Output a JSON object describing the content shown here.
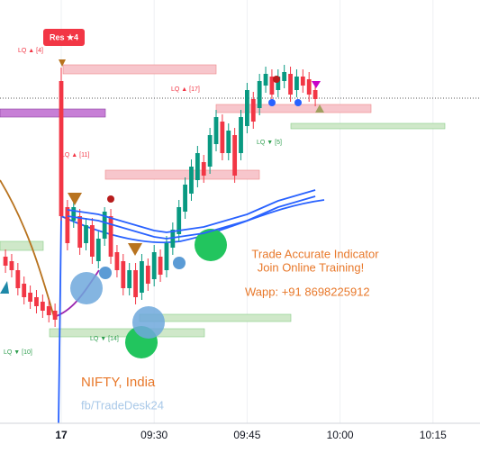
{
  "chart_data": {
    "type": "candlestick",
    "categories": [
      null,
      null,
      null,
      null,
      null,
      null,
      null,
      null,
      null,
      "17",
      null,
      null,
      null,
      null,
      null,
      null,
      null,
      null,
      null,
      null,
      null,
      null,
      null,
      null,
      "09:30",
      null,
      null,
      null,
      null,
      null,
      null,
      null,
      null,
      null,
      null,
      null,
      null,
      null,
      null,
      "09:45",
      null,
      null,
      null,
      null,
      null,
      null,
      null,
      null,
      null,
      null,
      null,
      null,
      null,
      null,
      "10:00",
      null,
      null,
      null,
      null,
      null,
      null,
      null,
      null,
      null,
      null,
      null,
      null,
      null,
      null,
      "10:15"
    ],
    "open": [
      185,
      180,
      170,
      155,
      145,
      140,
      135,
      130,
      125,
      380,
      240,
      225,
      230,
      200,
      220,
      180,
      205,
      230,
      190,
      180,
      150,
      170,
      145,
      175,
      160,
      185,
      170,
      195,
      210,
      235,
      255,
      270,
      290,
      285,
      310,
      335,
      300,
      320,
      300,
      330,
      360,
      350,
      375,
      385,
      370,
      380,
      388,
      370,
      385,
      382,
      370,
      null,
      null,
      null,
      null,
      null,
      null,
      null,
      null,
      null,
      null,
      null,
      null,
      null,
      null,
      null,
      null,
      null,
      null,
      null
    ],
    "high": [
      193,
      188,
      178,
      163,
      153,
      148,
      143,
      138,
      133,
      395,
      248,
      248,
      238,
      228,
      228,
      213,
      240,
      238,
      198,
      188,
      178,
      178,
      188,
      183,
      198,
      193,
      208,
      223,
      248,
      273,
      293,
      308,
      298,
      328,
      348,
      343,
      333,
      328,
      348,
      378,
      368,
      388,
      396,
      393,
      393,
      398,
      396,
      393,
      393,
      390,
      378,
      null,
      null,
      null,
      null,
      null,
      null,
      null,
      null,
      null,
      null,
      null,
      null,
      null,
      null,
      null,
      null,
      null,
      null,
      null
    ],
    "low": [
      167,
      162,
      142,
      132,
      127,
      122,
      117,
      112,
      107,
      225,
      192,
      217,
      187,
      192,
      177,
      172,
      197,
      177,
      162,
      142,
      142,
      132,
      137,
      147,
      152,
      157,
      162,
      187,
      202,
      227,
      247,
      262,
      267,
      277,
      302,
      292,
      292,
      267,
      292,
      322,
      327,
      342,
      367,
      357,
      362,
      372,
      357,
      362,
      367,
      357,
      352,
      null,
      null,
      null,
      null,
      null,
      null,
      null,
      null,
      null,
      null,
      null,
      null,
      null,
      null,
      null,
      null,
      null,
      null,
      null
    ],
    "close": [
      175,
      170,
      150,
      140,
      135,
      130,
      125,
      120,
      115,
      230,
      200,
      240,
      195,
      220,
      185,
      205,
      235,
      185,
      170,
      150,
      170,
      140,
      180,
      155,
      190,
      165,
      200,
      215,
      240,
      265,
      285,
      300,
      275,
      320,
      340,
      300,
      325,
      275,
      340,
      370,
      335,
      380,
      388,
      365,
      385,
      390,
      365,
      385,
      375,
      365,
      360,
      null,
      null,
      null,
      null,
      null,
      null,
      null,
      null,
      null,
      null,
      null,
      null,
      null,
      null,
      null,
      null,
      null,
      null,
      null
    ],
    "up_color": "#089981",
    "down_color": "#f23645",
    "lines": [
      {
        "color": "#2962ff",
        "values": [
          null,
          null,
          null,
          null,
          null,
          null,
          null,
          null,
          null,
          null,
          230,
          229,
          228,
          227,
          226,
          225,
          223,
          221,
          219,
          217,
          215,
          213,
          211,
          209,
          207,
          206,
          205,
          206,
          207,
          208,
          209,
          210,
          211,
          213,
          215,
          217,
          219,
          221,
          223,
          225,
          228,
          231,
          234,
          237,
          240,
          242,
          244,
          246,
          248,
          250,
          252,
          null,
          null,
          null,
          null,
          null,
          null,
          null,
          null,
          null,
          null,
          null,
          null,
          null,
          null,
          null,
          null,
          null,
          null,
          null
        ]
      }
    ],
    "ylim": [
      0,
      470
    ],
    "grid": true,
    "annotations": {
      "resistance": "Res ★4",
      "lq1": "LQ ▲ [4]",
      "lq2": "LQ ▲ [17]",
      "lq3": "LQ ▲ [11]",
      "lq4": "LQ ▼ [5]",
      "lq5": "LQ ▼ [14]",
      "lq6": "LQ ▼ [10]",
      "promo1": "Trade Accurate Indicator",
      "promo2": "Join Online Training!",
      "promo3": "Wapp: +91 8698225912",
      "symbol": "NIFTY, India",
      "credit": "fb/TradeDesk24"
    }
  }
}
